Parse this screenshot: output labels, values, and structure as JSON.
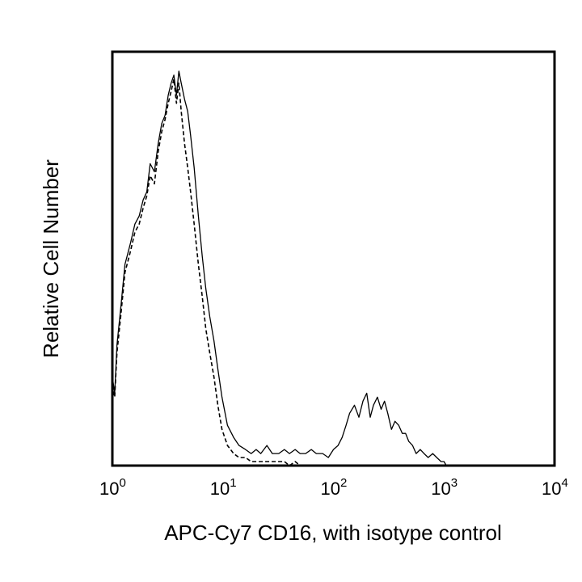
{
  "chart_data": {
    "type": "line",
    "title": "",
    "xlabel": "APC-Cy7 CD16, with isotype control",
    "ylabel": "Relative Cell Number",
    "x_scale": "log",
    "xlim": [
      1,
      10000
    ],
    "ylim": [
      0,
      100
    ],
    "x_ticks": [
      {
        "value": 1,
        "base": "10",
        "exp": "0"
      },
      {
        "value": 10,
        "base": "10",
        "exp": "1"
      },
      {
        "value": 100,
        "base": "10",
        "exp": "2"
      },
      {
        "value": 1000,
        "base": "10",
        "exp": "3"
      },
      {
        "value": 10000,
        "base": "10",
        "exp": "4"
      }
    ],
    "series": [
      {
        "name": "CD16",
        "style": "solid",
        "color": "#000000",
        "x": [
          1.0,
          1.05,
          1.1,
          1.2,
          1.3,
          1.45,
          1.6,
          1.75,
          1.9,
          2.05,
          2.2,
          2.4,
          2.6,
          2.8,
          3.0,
          3.2,
          3.4,
          3.6,
          3.8,
          4.0,
          4.2,
          4.5,
          4.8,
          5.1,
          5.5,
          6.0,
          6.5,
          7.0,
          7.6,
          8.3,
          9.0,
          9.8,
          11.0,
          12.5,
          14,
          16,
          18,
          20,
          22,
          25,
          28,
          32,
          36,
          40,
          45,
          50,
          56,
          63,
          70,
          80,
          90,
          100,
          110,
          120,
          130,
          140,
          155,
          170,
          185,
          200,
          215,
          230,
          250,
          270,
          290,
          310,
          335,
          360,
          390,
          420,
          450,
          480,
          520,
          560,
          610,
          660,
          720,
          790,
          860,
          940,
          1000,
          1050,
          1100
        ],
        "y": [
          22,
          18,
          30,
          40,
          50,
          55,
          60,
          62,
          66,
          68,
          75,
          73,
          80,
          85,
          87,
          92,
          95,
          97,
          92,
          98,
          95,
          91,
          88,
          82,
          74,
          62,
          52,
          44,
          37,
          31,
          24,
          17,
          10,
          7,
          5,
          4,
          3,
          4,
          3,
          5,
          3,
          3,
          4,
          3,
          4,
          3,
          3,
          4,
          3,
          3,
          2,
          4,
          5,
          7,
          10,
          13,
          15,
          12,
          16,
          18,
          12,
          15,
          17,
          14,
          16,
          13,
          9,
          11,
          10,
          8,
          8,
          6,
          5,
          3,
          4,
          3,
          2,
          3,
          2,
          1,
          1,
          0,
          0
        ]
      },
      {
        "name": "Isotype control",
        "style": "dashed",
        "color": "#000000",
        "x": [
          1.0,
          1.05,
          1.1,
          1.2,
          1.3,
          1.45,
          1.6,
          1.75,
          1.9,
          2.05,
          2.2,
          2.4,
          2.6,
          2.8,
          3.0,
          3.2,
          3.4,
          3.6,
          3.8,
          4.0,
          4.2,
          4.5,
          4.8,
          5.1,
          5.5,
          6.0,
          6.5,
          7.0,
          7.6,
          8.3,
          9.0,
          9.8,
          11.0,
          12.5,
          14,
          16,
          18,
          20,
          22,
          25,
          28,
          32,
          36,
          40,
          45,
          50,
          60,
          80,
          100,
          200,
          500,
          1000,
          2000
        ],
        "y": [
          20,
          17,
          28,
          38,
          48,
          53,
          58,
          60,
          64,
          67,
          72,
          70,
          78,
          83,
          86,
          90,
          93,
          96,
          90,
          95,
          88,
          80,
          74,
          68,
          60,
          50,
          42,
          34,
          28,
          22,
          15,
          9,
          5,
          3,
          2,
          2,
          1,
          1,
          1,
          1,
          1,
          1,
          1,
          0,
          1,
          0,
          0,
          0,
          0,
          0,
          0,
          0,
          0
        ]
      }
    ]
  }
}
